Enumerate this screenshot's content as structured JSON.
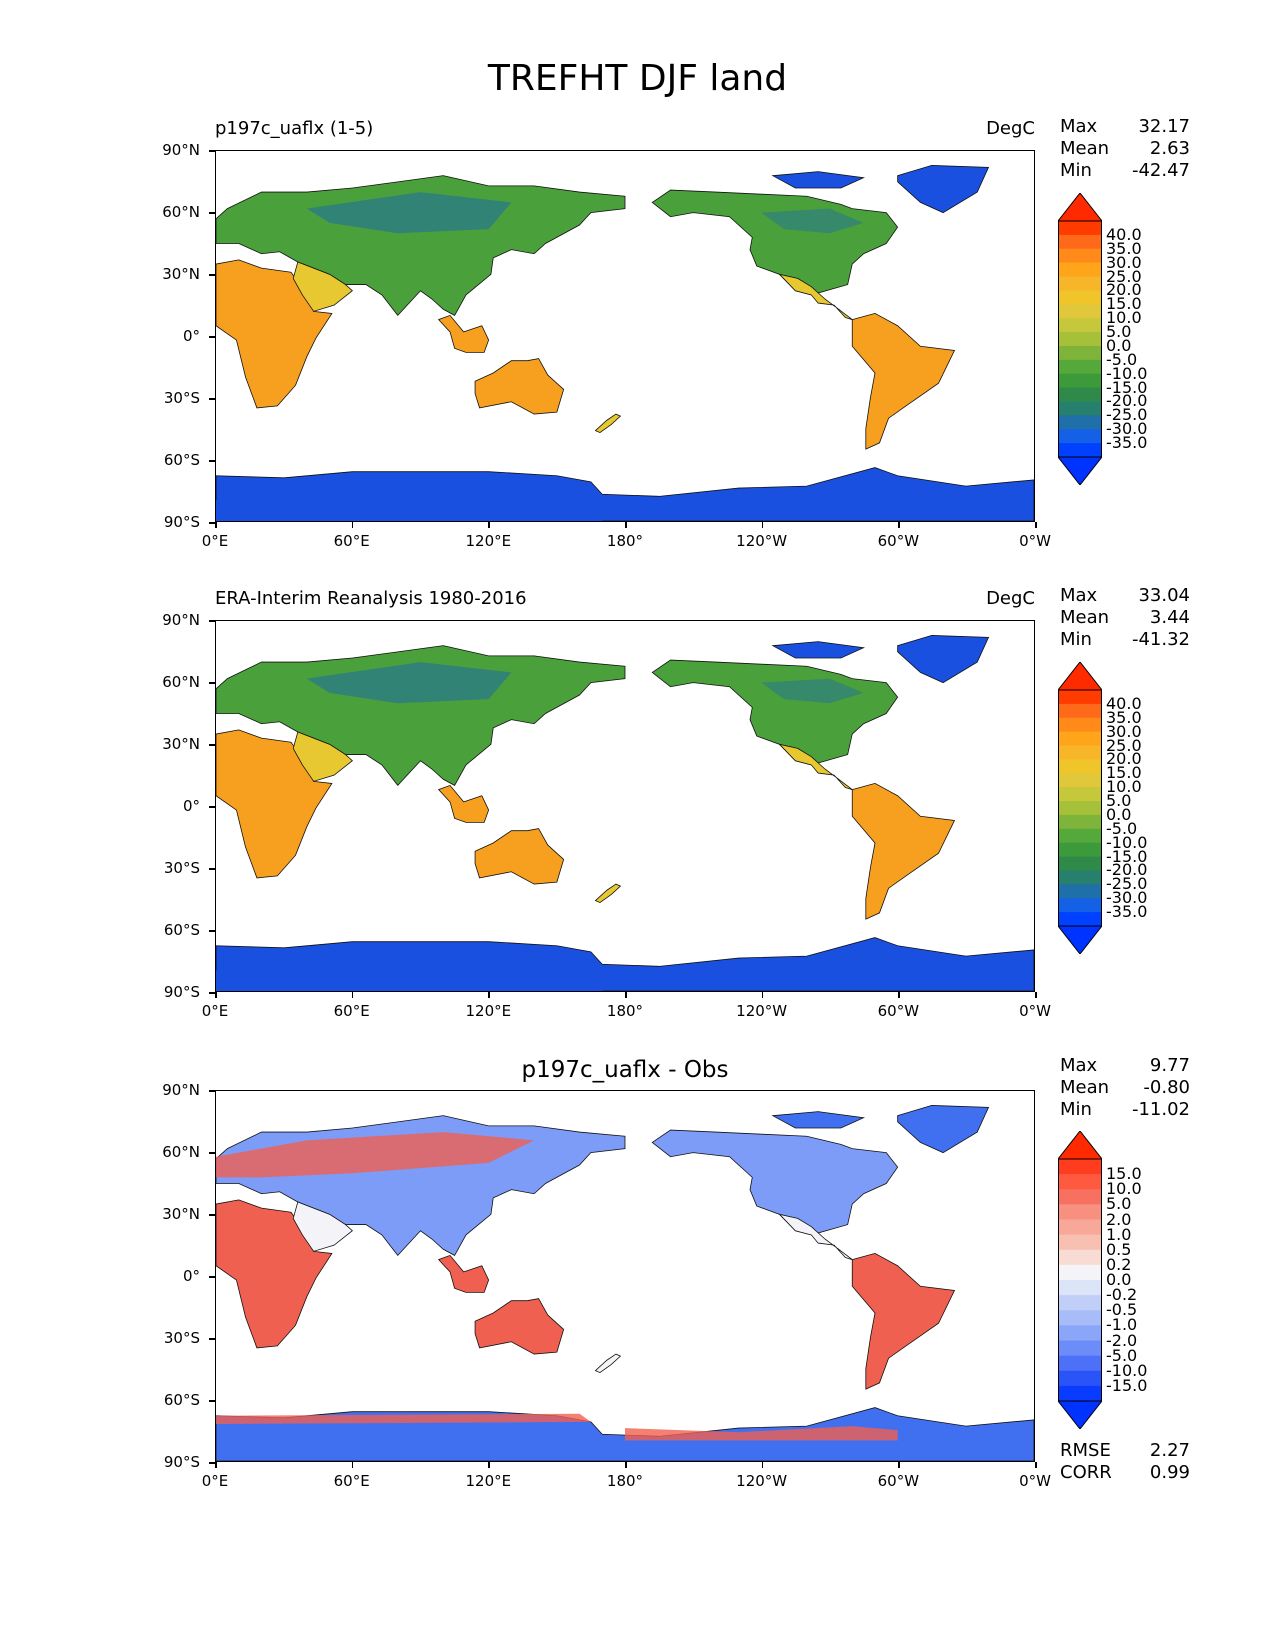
{
  "title": "TREFHT DJF land",
  "lat_ticks": [
    "90°N",
    "60°N",
    "30°N",
    "0°",
    "30°S",
    "60°S",
    "90°S"
  ],
  "lon_ticks": [
    "0°E",
    "60°E",
    "120°E",
    "180°",
    "120°W",
    "60°W",
    "0°W"
  ],
  "panels": [
    {
      "left_title": "p197c_uaflx (1-5)",
      "center_title": "",
      "right_title": "DegC",
      "stats": {
        "max_label": "Max",
        "max": "32.17",
        "mean_label": "Mean",
        "mean": "2.63",
        "min_label": "Min",
        "min": "-42.47"
      },
      "colorbar": {
        "ticks": [
          "40.0",
          "35.0",
          "30.0",
          "25.0",
          "20.0",
          "15.0",
          "10.0",
          "5.0",
          "0.0",
          "-5.0",
          "-10.0",
          "-15.0",
          "-20.0",
          "-25.0",
          "-30.0",
          "-35.0"
        ],
        "colors": [
          "#ff3b00",
          "#ff6a1a",
          "#ff8a1a",
          "#ffa51a",
          "#f7b52a",
          "#efc52a",
          "#e0c83a",
          "#c4c83a",
          "#a6c03a",
          "#7fb43a",
          "#55a83a",
          "#3d9a3a",
          "#2f8a4a",
          "#277f6e",
          "#1f6fa8",
          "#1460e6",
          "#0040ff"
        ],
        "over_color": "#ff2a00",
        "under_color": "#0033ff"
      },
      "palette": {
        "land_warm": "#f7a020",
        "land_mid": "#e8c830",
        "land_cool": "#4aa03a",
        "land_cold": "#2a7a8a",
        "land_frozen": "#1a50e0"
      }
    },
    {
      "left_title": "ERA-Interim Reanalysis 1980-2016",
      "center_title": "",
      "right_title": "DegC",
      "stats": {
        "max_label": "Max",
        "max": "33.04",
        "mean_label": "Mean",
        "mean": "3.44",
        "min_label": "Min",
        "min": "-41.32"
      },
      "colorbar": {
        "ticks": [
          "40.0",
          "35.0",
          "30.0",
          "25.0",
          "20.0",
          "15.0",
          "10.0",
          "5.0",
          "0.0",
          "-5.0",
          "-10.0",
          "-15.0",
          "-20.0",
          "-25.0",
          "-30.0",
          "-35.0"
        ],
        "colors": [
          "#ff3b00",
          "#ff6a1a",
          "#ff8a1a",
          "#ffa51a",
          "#f7b52a",
          "#efc52a",
          "#e0c83a",
          "#c4c83a",
          "#a6c03a",
          "#7fb43a",
          "#55a83a",
          "#3d9a3a",
          "#2f8a4a",
          "#277f6e",
          "#1f6fa8",
          "#1460e6",
          "#0040ff"
        ],
        "over_color": "#ff2a00",
        "under_color": "#0033ff"
      },
      "palette": {
        "land_warm": "#f7a020",
        "land_mid": "#e8c830",
        "land_cool": "#4aa03a",
        "land_cold": "#2a7a8a",
        "land_frozen": "#1a50e0"
      }
    },
    {
      "left_title": "",
      "center_title": "p197c_uaflx - Obs",
      "right_title": "",
      "stats": {
        "max_label": "Max",
        "max": "9.77",
        "mean_label": "Mean",
        "mean": "-0.80",
        "min_label": "Min",
        "min": "-11.02"
      },
      "colorbar": {
        "ticks": [
          "15.0",
          "10.0",
          "5.0",
          "2.0",
          "1.0",
          "0.5",
          "0.2",
          "0.0",
          "-0.2",
          "-0.5",
          "-1.0",
          "-2.0",
          "-5.0",
          "-10.0",
          "-15.0"
        ],
        "colors": [
          "#ff3b20",
          "#ff5a40",
          "#f87060",
          "#f89080",
          "#f8a898",
          "#f8c0b0",
          "#f8dcd4",
          "#f4f4f8",
          "#dce4f8",
          "#c0cef8",
          "#a8bcf8",
          "#8aa6f8",
          "#6c8cf8",
          "#4c70f8",
          "#2a54f8",
          "#0a3cff"
        ],
        "over_color": "#ff2a00",
        "under_color": "#0033ff"
      },
      "palette": {
        "land_warm": "#f06050",
        "land_mid": "#f4f4f8",
        "land_cool": "#7c9cf8",
        "land_cold": "#5a80f0",
        "land_frozen": "#4070f0"
      },
      "accuracy": {
        "rmse_label": "RMSE",
        "rmse": "2.27",
        "corr_label": "CORR",
        "corr": "0.99"
      }
    }
  ]
}
